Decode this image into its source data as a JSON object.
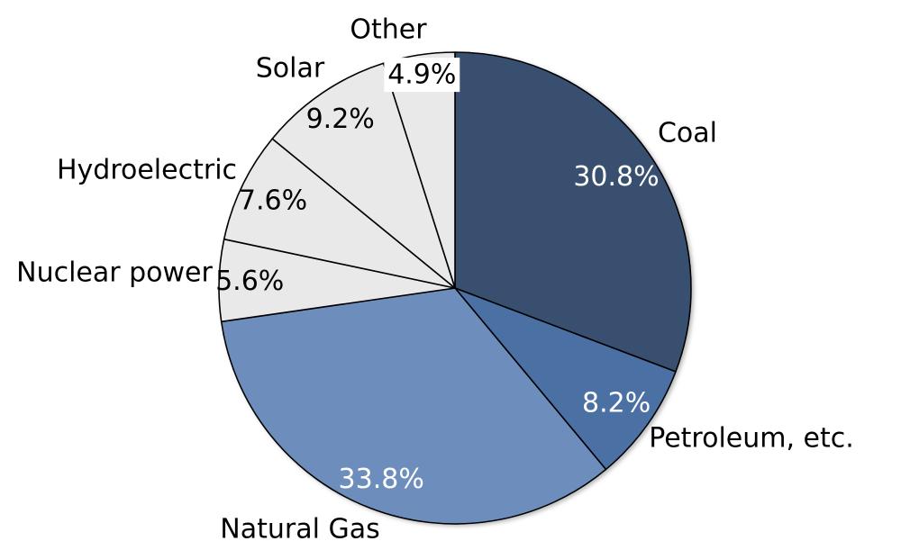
{
  "chart_data": {
    "type": "pie",
    "title": "",
    "unit": "percent",
    "direction": "clockwise",
    "start_angle": "12-oclock",
    "legend_position": "none",
    "grid": false,
    "outline_color": "#000000",
    "category_label_color": "#000000",
    "background_color": "#FFFFFF",
    "slices": [
      {
        "label": "Coal",
        "value": 30.8,
        "display": "30.8%",
        "color": "#394F70",
        "value_label_color": "#FFFFFF"
      },
      {
        "label": "Petroleum, etc.",
        "value": 8.2,
        "display": "8.2%",
        "color": "#4C6FA4",
        "value_label_color": "#FFFFFF"
      },
      {
        "label": "Natural Gas",
        "value": 33.8,
        "display": "33.8%",
        "color": "#6D8EBD",
        "value_label_color": "#FFFFFF"
      },
      {
        "label": "Nuclear power",
        "value": 5.6,
        "display": "5.6%",
        "color": "#E9E9E9",
        "value_label_color": "#000000"
      },
      {
        "label": "Hydroelectric",
        "value": 7.6,
        "display": "7.6%",
        "color": "#E9E9E9",
        "value_label_color": "#000000"
      },
      {
        "label": "Solar",
        "value": 9.2,
        "display": "9.2%",
        "color": "#E9E9E9",
        "value_label_color": "#000000"
      },
      {
        "label": "Other",
        "value": 4.9,
        "display": "4.9%",
        "color": "#E9E9E9",
        "value_label_color": "#000000",
        "value_label_background": "#FFFFFF"
      }
    ]
  }
}
